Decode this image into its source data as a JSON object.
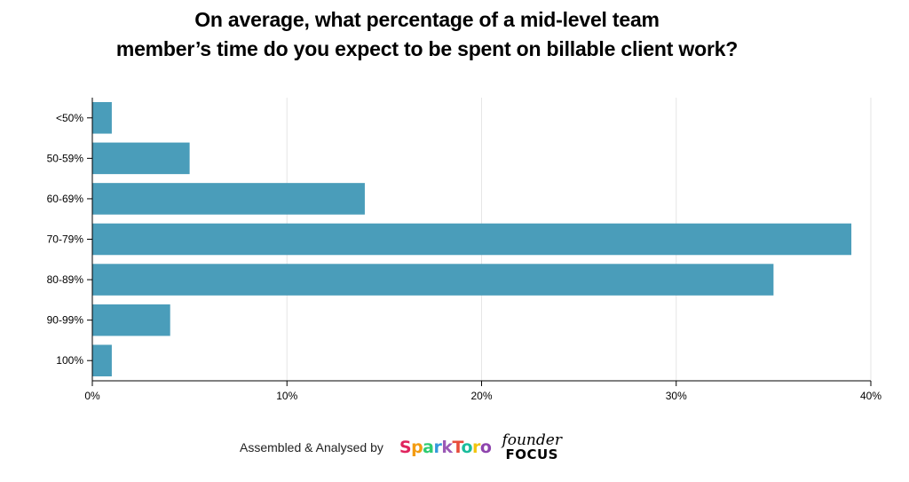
{
  "title_line1": "On average, what percentage of a mid-level team",
  "title_line2": "member’s time do you expect to be spent on billable client work?",
  "chart_data": {
    "type": "bar",
    "orientation": "horizontal",
    "title": "On average, what percentage of a mid-level team member’s time do you expect to be spent on billable client work?",
    "categories": [
      "<50%",
      "50-59%",
      "60-69%",
      "70-79%",
      "80-89%",
      "90-99%",
      "100%"
    ],
    "values": [
      1,
      5,
      14,
      39,
      35,
      4,
      1
    ],
    "xlim": [
      0,
      40
    ],
    "xticks": [
      0,
      10,
      20,
      30,
      40
    ],
    "xtick_labels": [
      "0%",
      "10%",
      "20%",
      "30%",
      "40%"
    ],
    "grid": true,
    "bar_color": "#4a9dba",
    "grid_color": "#e6e6e6"
  },
  "footer": {
    "credit": "Assembled & Analysed by",
    "logo_sparktoro": "SparkToro",
    "logo_founder_top": "founder",
    "logo_founder_bottom": "FOCUS"
  },
  "colors": {
    "sparktoro_letters": [
      "#e0245e",
      "#f39c12",
      "#2ecc71",
      "#3498db",
      "#9b59b6",
      "#e74c3c",
      "#1abc9c",
      "#f1c40f",
      "#8e44ad"
    ]
  }
}
